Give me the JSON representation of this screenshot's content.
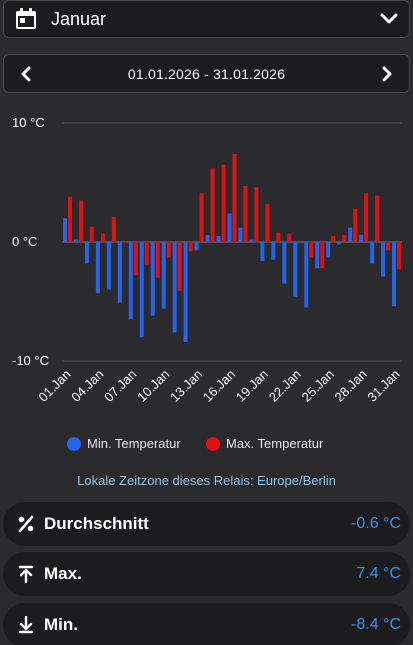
{
  "month_select": {
    "label": "Januar",
    "icon": "calendar-icon"
  },
  "range": {
    "text": "01.01.2026 - 31.01.2026"
  },
  "chart_data": {
    "type": "bar",
    "title": "",
    "xlabel": "",
    "ylabel": "",
    "ylim": [
      -10,
      10
    ],
    "y_ticks": [
      "10 °C",
      "0 °C",
      "-10 °C"
    ],
    "y_tick_values": [
      10,
      0,
      -10
    ],
    "grid": true,
    "legend_position": "bottom",
    "categories": [
      "01.Jan",
      "02.Jan",
      "03.Jan",
      "04.Jan",
      "05.Jan",
      "06.Jan",
      "07.Jan",
      "08.Jan",
      "09.Jan",
      "10.Jan",
      "11.Jan",
      "12.Jan",
      "13.Jan",
      "14.Jan",
      "15.Jan",
      "16.Jan",
      "17.Jan",
      "18.Jan",
      "19.Jan",
      "20.Jan",
      "21.Jan",
      "22.Jan",
      "23.Jan",
      "24.Jan",
      "25.Jan",
      "26.Jan",
      "27.Jan",
      "28.Jan",
      "29.Jan",
      "30.Jan",
      "31.Jan"
    ],
    "x_tick_labels": [
      "01.Jan",
      "04.Jan",
      "07.Jan",
      "10.Jan",
      "13.Jan",
      "16.Jan",
      "19.Jan",
      "22.Jan",
      "25.Jan",
      "28.Jan",
      "31.Jan"
    ],
    "series": [
      {
        "name": "Min. Temperatur",
        "color": "#2463eb",
        "values": [
          2.0,
          0.2,
          -1.8,
          -4.3,
          -4.0,
          -5.1,
          -6.5,
          -8.0,
          -6.2,
          -5.6,
          -7.6,
          -8.4,
          -0.7,
          0.6,
          0.5,
          2.4,
          1.2,
          0.2,
          -1.6,
          -1.5,
          -3.5,
          -4.6,
          -5.5,
          -2.2,
          -1.3,
          -0.2,
          1.2,
          0.6,
          -1.8,
          -2.9,
          -5.4
        ]
      },
      {
        "name": "Max. Temperatur",
        "color": "#dd1111",
        "values": [
          3.8,
          3.5,
          1.3,
          0.7,
          2.1,
          0.0,
          -2.8,
          -1.9,
          -3.0,
          -1.3,
          -4.1,
          -0.8,
          4.1,
          6.2,
          6.5,
          7.4,
          4.7,
          4.6,
          3.2,
          0.8,
          0.7,
          0.1,
          -1.3,
          -2.2,
          0.5,
          0.6,
          2.8,
          4.1,
          3.9,
          -0.7,
          -2.3
        ]
      }
    ]
  },
  "timezone_note": "Lokale Zeitzone dieses Relais: Europe/Berlin",
  "stats": {
    "average": {
      "label": "Durchschnitt",
      "value": "-0.6 °C",
      "icon": "percent-icon"
    },
    "max": {
      "label": "Max.",
      "value": "7.4 °C",
      "icon": "arrow-up-to-line-icon"
    },
    "min": {
      "label": "Min.",
      "value": "-8.4 °C",
      "icon": "arrow-down-to-line-icon"
    }
  },
  "colors": {
    "accent": "#2f93f0",
    "min_series": "#2463eb",
    "max_series": "#dd1111"
  }
}
